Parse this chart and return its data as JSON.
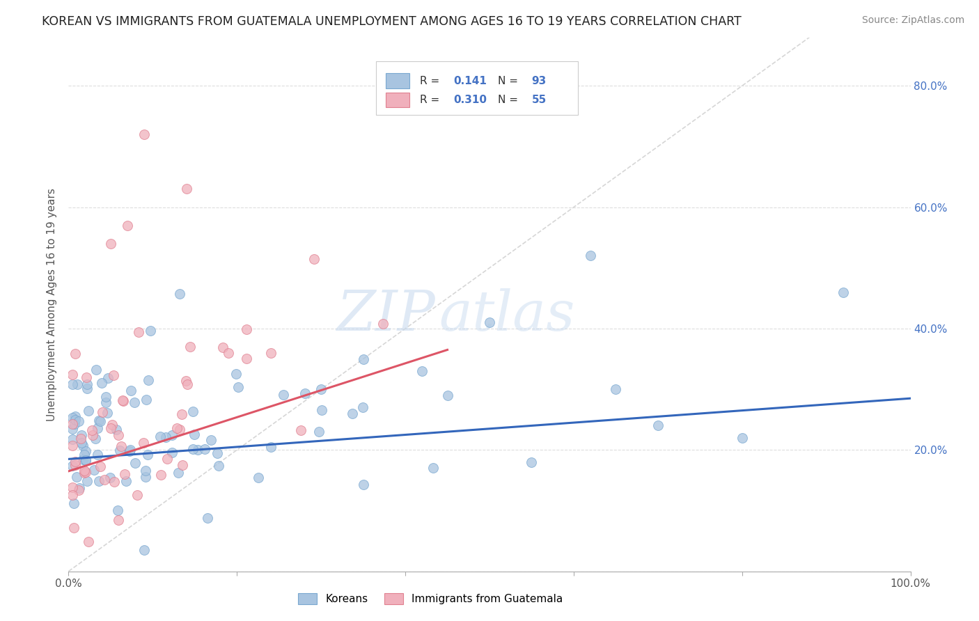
{
  "title": "KOREAN VS IMMIGRANTS FROM GUATEMALA UNEMPLOYMENT AMONG AGES 16 TO 19 YEARS CORRELATION CHART",
  "source": "Source: ZipAtlas.com",
  "ylabel": "Unemployment Among Ages 16 to 19 years",
  "watermark_zip": "ZIP",
  "watermark_atlas": "atlas",
  "korean_color": "#a8c4e0",
  "korean_edge": "#7aa8d0",
  "guatemalan_color": "#f0b0bc",
  "guatemalan_edge": "#e08090",
  "trendline_korean_color": "#3366bb",
  "trendline_guatemalan_color": "#dd5566",
  "diagonal_color": "#cccccc",
  "legend_blue_box": "#a8c4e0",
  "legend_pink_box": "#f0b0bc",
  "legend_blue_edge": "#7aa8d0",
  "legend_pink_edge": "#e08090",
  "legend_text_color": "#4472c4",
  "ylabel_color": "#555555",
  "title_color": "#222222",
  "source_color": "#888888",
  "tick_color": "#4472c4",
  "grid_color": "#dddddd",
  "xlim": [
    0.0,
    1.0
  ],
  "ylim": [
    0.0,
    0.88
  ],
  "xticks": [
    0.0,
    0.2,
    0.4,
    0.6,
    0.8,
    1.0
  ],
  "yticks": [
    0.0,
    0.2,
    0.4,
    0.6,
    0.8
  ],
  "ytick_labels": [
    "",
    "20.0%",
    "40.0%",
    "60.0%",
    "80.0%"
  ],
  "xtick_labels_show": [
    "0.0%",
    "100.0%"
  ],
  "korean_r": 0.141,
  "korean_n": 93,
  "guatemalan_r": 0.31,
  "guatemalan_n": 55,
  "korean_trendline": [
    [
      0.0,
      0.185
    ],
    [
      1.0,
      0.285
    ]
  ],
  "guatemalan_trendline": [
    [
      0.0,
      0.165
    ],
    [
      0.45,
      0.365
    ]
  ],
  "diagonal_line": [
    [
      0.0,
      0.0
    ],
    [
      0.88,
      0.88
    ]
  ]
}
